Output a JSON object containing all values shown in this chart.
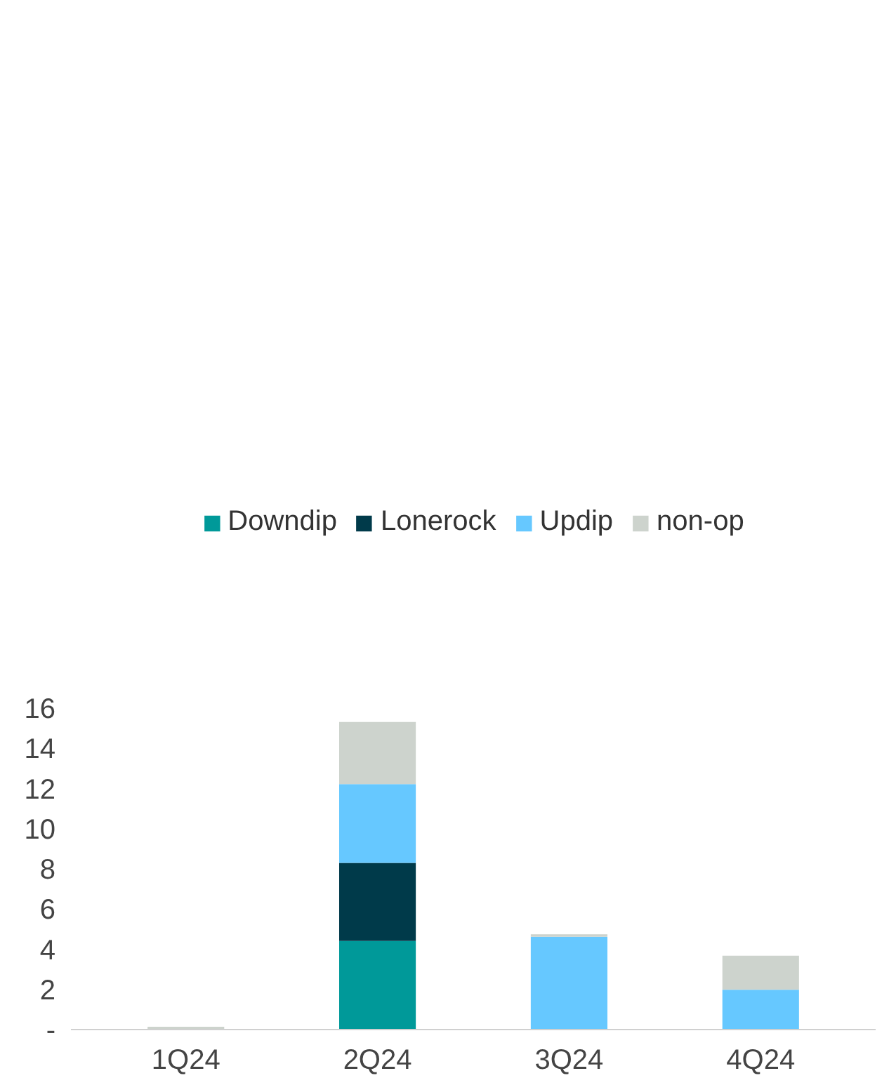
{
  "chart_data": {
    "type": "bar",
    "stacked": true,
    "categories": [
      "1Q24",
      "2Q24",
      "3Q24",
      "4Q24"
    ],
    "series": [
      {
        "name": "Downdip",
        "color": "#009999",
        "values": [
          0,
          4.41,
          0,
          0
        ]
      },
      {
        "name": "Lonerock",
        "color": "#003a4a",
        "values": [
          0,
          3.89,
          0,
          0
        ]
      },
      {
        "name": "Updip",
        "color": "#66c8ff",
        "values": [
          0,
          3.92,
          4.62,
          1.98
        ]
      },
      {
        "name": "non-op",
        "color": "#cdd3cd",
        "values": [
          0.14,
          3.09,
          0.12,
          1.7
        ]
      }
    ],
    "ylim": [
      0,
      16
    ],
    "yticks": [
      {
        "value": 0,
        "label": "-"
      },
      2,
      4,
      6,
      8,
      10,
      12,
      14,
      16
    ],
    "grid": false,
    "legend": "top"
  }
}
